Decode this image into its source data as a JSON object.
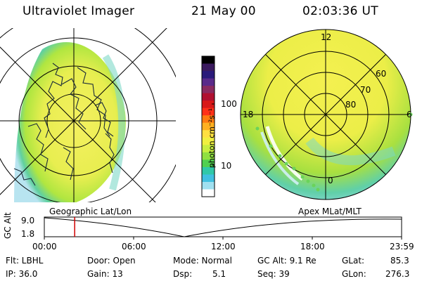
{
  "header": {
    "instrument": "Ultraviolet Imager",
    "date": "21 May 00",
    "time": "02:03:36 UT"
  },
  "colorbar": {
    "label": "photon cm⁻²s⁻¹",
    "ticks": [
      "100",
      "10"
    ],
    "colors": [
      "#000000",
      "#3a1a5e",
      "#2a1a7a",
      "#5a2a8a",
      "#8a2a60",
      "#b01030",
      "#d81818",
      "#ff3018",
      "#ff7a10",
      "#ffb020",
      "#ffe040",
      "#f0f040",
      "#c8ee40",
      "#90e040",
      "#50d050",
      "#30c8a8",
      "#40c0e0",
      "#a0e0f0",
      "#ffffff"
    ]
  },
  "left_map": {
    "label": "Geographic Lat/Lon"
  },
  "right_map": {
    "label": "Apex MLat/MLT",
    "mlt_labels": {
      "top": "12",
      "left": "18",
      "right": "6",
      "bottom": "0"
    },
    "lat_labels": [
      "60",
      "70",
      "80"
    ]
  },
  "timeline": {
    "axis_label": "GC Alt",
    "y_ticks": [
      "9.0",
      "1.8"
    ],
    "x_ticks": [
      "00:00",
      "06:00",
      "12:00",
      "18:00",
      "23:59"
    ],
    "marker_time_fraction": 0.085,
    "marker_color": "#d00000"
  },
  "status": {
    "flt": "Flt: LBHL",
    "ip": "IP: 36.0",
    "door": "Door: Open",
    "gain": "Gain: 13",
    "mode": "Mode: Normal",
    "dsp_label": "Dsp:",
    "dsp_value": "5.1",
    "gcalt": "GC Alt: 9.1 Re",
    "seq": "Seq: 39",
    "glat_label": "GLat:",
    "glat_value": "85.3",
    "glon_label": "GLon:",
    "glon_value": "276.3"
  }
}
